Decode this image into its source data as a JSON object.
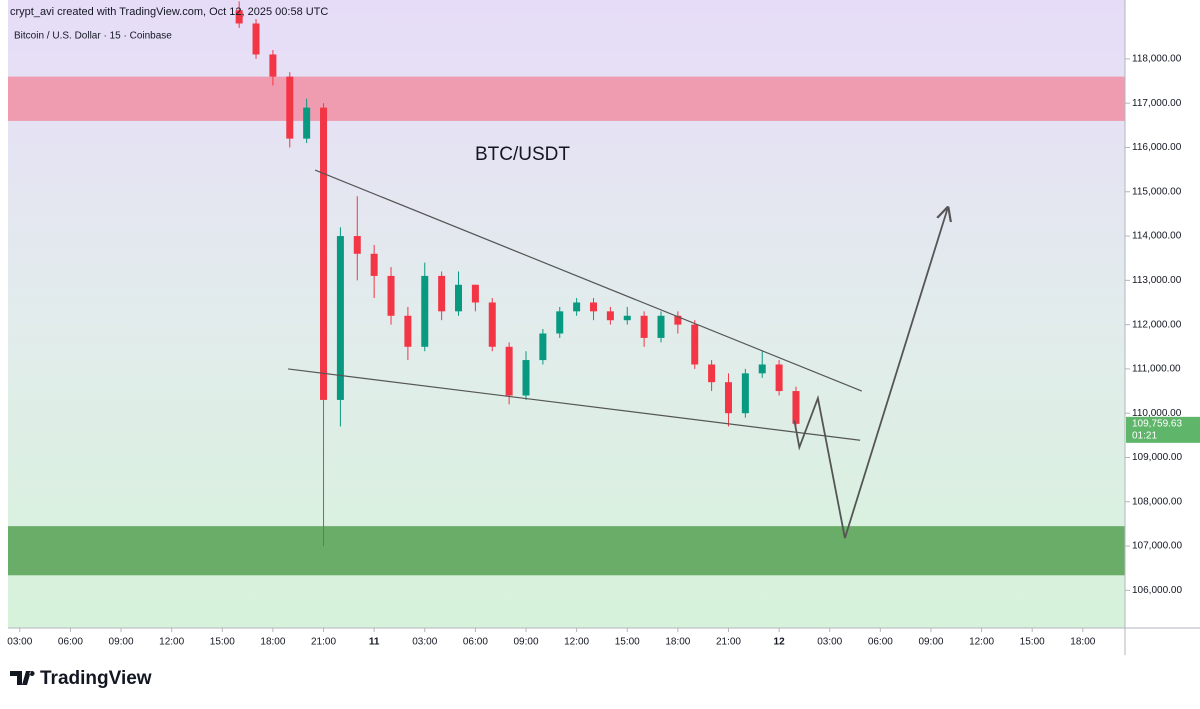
{
  "header": {
    "credit": "crypt_avi created with TradingView.com, Oct 12, 2025 00:58 UTC",
    "logo": "TradingView"
  },
  "chart_data": {
    "type": "candlestick",
    "subtitle": "Bitcoin / U.S. Dollar · 15 · Coinbase",
    "annotation": "BTC/USDT",
    "x": [
      16,
      17,
      18,
      19,
      20,
      21,
      22,
      23,
      24,
      25,
      26,
      27,
      28,
      29,
      30,
      31,
      32,
      33,
      34,
      35,
      36,
      37,
      38,
      39,
      40,
      41,
      42,
      43,
      44,
      45,
      46,
      47,
      48,
      49
    ],
    "open": [
      119100,
      118800,
      118100,
      117600,
      116200,
      116900,
      110300,
      114000,
      113600,
      113100,
      112200,
      111500,
      113100,
      112300,
      112900,
      112500,
      111500,
      110400,
      111200,
      111800,
      112300,
      112500,
      112300,
      112100,
      112200,
      111700,
      112200,
      112000,
      111100,
      110700,
      110000,
      110900,
      111100,
      110500
    ],
    "high": [
      119300,
      118900,
      118200,
      117700,
      117100,
      117000,
      114200,
      114900,
      113800,
      113300,
      112400,
      113400,
      113200,
      113200,
      112900,
      112600,
      111600,
      111400,
      111900,
      112400,
      112600,
      112600,
      112400,
      112400,
      112300,
      112300,
      112300,
      112100,
      111200,
      110900,
      111000,
      111400,
      111200,
      110600
    ],
    "low": [
      118700,
      118000,
      117400,
      116000,
      116100,
      107000,
      109700,
      113000,
      112600,
      112000,
      111200,
      111400,
      112100,
      112200,
      112300,
      111400,
      110200,
      110300,
      111100,
      111700,
      112200,
      112100,
      112000,
      112000,
      111500,
      111600,
      111800,
      111000,
      110500,
      109700,
      109900,
      110800,
      110400,
      109700
    ],
    "close": [
      118800,
      118100,
      117600,
      116200,
      116900,
      110300,
      114000,
      113600,
      113100,
      112200,
      111500,
      113100,
      112300,
      112900,
      112500,
      111500,
      110400,
      111200,
      111800,
      112300,
      112500,
      112300,
      112100,
      112200,
      111700,
      112200,
      112000,
      111100,
      110700,
      110000,
      110900,
      111100,
      110500,
      109760
    ],
    "up_color": "#089981",
    "down_color": "#f23645",
    "zones": [
      {
        "range": [
          116600,
          117600
        ],
        "color": "#f09cb0"
      },
      {
        "range": [
          106340,
          107450
        ],
        "color": "#69ad69"
      }
    ],
    "trendlines": [
      {
        "x": [
          20.5,
          52.9
        ],
        "y": [
          115490,
          110500
        ]
      },
      {
        "x": [
          18.9,
          52.8
        ],
        "y": [
          111000,
          109390
        ]
      }
    ],
    "projection": {
      "x": [
        48.9,
        49.2,
        50.3,
        51.9,
        58.0
      ],
      "y": [
        109840,
        109230,
        110340,
        107180,
        114640
      ]
    },
    "last_price": {
      "value": 109759.63,
      "label": "109,759.63"
    },
    "countdown": "01:21",
    "xlim": [
      2.3,
      68.5
    ],
    "ylim": [
      105150,
      119330
    ],
    "xticks": [
      {
        "value": 3,
        "label": "03:00"
      },
      {
        "value": 6,
        "label": "06:00"
      },
      {
        "value": 9,
        "label": "09:00"
      },
      {
        "value": 12,
        "label": "12:00"
      },
      {
        "value": 15,
        "label": "15:00"
      },
      {
        "value": 18,
        "label": "18:00"
      },
      {
        "value": 21,
        "label": "21:00"
      },
      {
        "value": 24,
        "label": "11"
      },
      {
        "value": 27,
        "label": "03:00"
      },
      {
        "value": 30,
        "label": "06:00"
      },
      {
        "value": 33,
        "label": "09:00"
      },
      {
        "value": 36,
        "label": "12:00"
      },
      {
        "value": 39,
        "label": "15:00"
      },
      {
        "value": 42,
        "label": "18:00"
      },
      {
        "value": 45,
        "label": "21:00"
      },
      {
        "value": 48,
        "label": "12"
      },
      {
        "value": 51,
        "label": "03:00"
      },
      {
        "value": 54,
        "label": "06:00"
      },
      {
        "value": 57,
        "label": "09:00"
      },
      {
        "value": 60,
        "label": "12:00"
      },
      {
        "value": 63,
        "label": "15:00"
      },
      {
        "value": 66,
        "label": "18:00"
      }
    ],
    "yticks": [
      {
        "value": 106000,
        "label": "106,000.00"
      },
      {
        "value": 107000,
        "label": "107,000.00"
      },
      {
        "value": 108000,
        "label": "108,000.00"
      },
      {
        "value": 109000,
        "label": "109,000.00"
      },
      {
        "value": 110000,
        "label": "110,000.00"
      },
      {
        "value": 111000,
        "label": "111,000.00"
      },
      {
        "value": 112000,
        "label": "112,000.00"
      },
      {
        "value": 113000,
        "label": "113,000.00"
      },
      {
        "value": 114000,
        "label": "114,000.00"
      },
      {
        "value": 115000,
        "label": "115,000.00"
      },
      {
        "value": 116000,
        "label": "116,000.00"
      },
      {
        "value": 117000,
        "label": "117,000.00"
      },
      {
        "value": 118000,
        "label": "118,000.00"
      }
    ]
  }
}
